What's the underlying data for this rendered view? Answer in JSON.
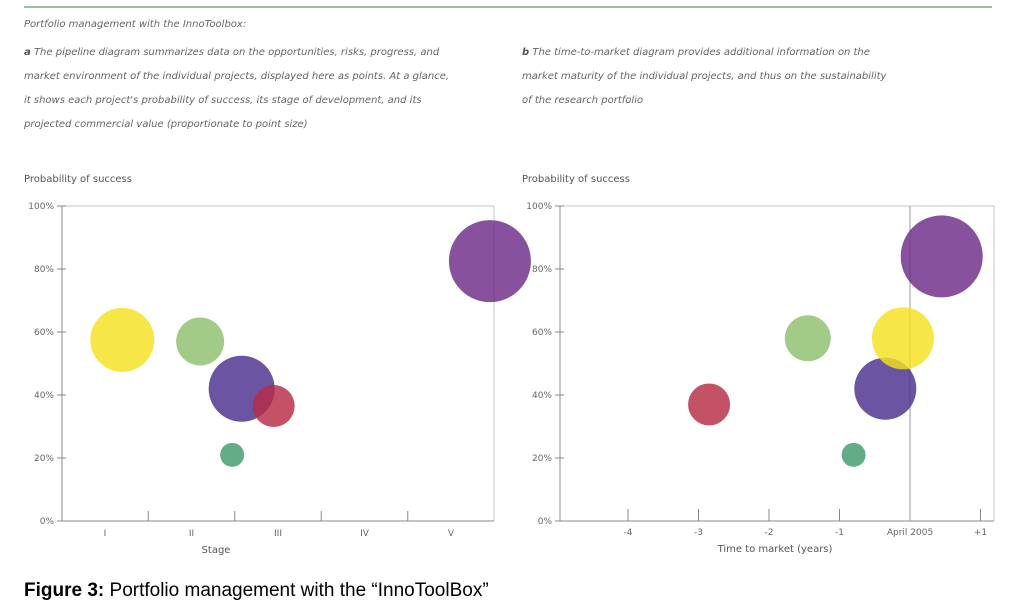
{
  "header": {
    "title": "Portfolio management with the InnoToolbox:"
  },
  "captions": {
    "a_letter": "a",
    "a_lines": [
      "The pipeline diagram summarizes data on the opportunities, risks, progress, and",
      "market environment of the individual projects, displayed here as points. At a glance,",
      "it shows each project's probability of success, its stage of development, and its",
      "projected commercial value (proportionate to point size)"
    ],
    "b_letter": "b",
    "b_lines": [
      "The time-to-market diagram provides additional information on the",
      "market maturity of the individual projects, and thus on the sustainability",
      "of the research portfolio"
    ]
  },
  "figure_caption": {
    "label": "Figure 3:",
    "text": "Portfolio management with the “InnoToolBox”"
  },
  "colors": {
    "yellow": "#f5e01e",
    "green": "#8ebf6c",
    "indigo": "#4a2f8f",
    "red": "#b62c46",
    "teal": "#3f9a6e",
    "purple": "#6d2b88"
  },
  "chart_data": [
    {
      "type": "scatter",
      "ylabel": "Probability of success",
      "xlabel": "Stage",
      "x_categories": [
        "I",
        "II",
        "III",
        "IV",
        "V"
      ],
      "y_ticks": [
        "0%",
        "20%",
        "40%",
        "60%",
        "80%",
        "100%"
      ],
      "ylim": [
        0,
        100
      ],
      "points": [
        {
          "x": 0.2,
          "y": 57.5,
          "size": 32,
          "color": "#f5e01e"
        },
        {
          "x": 1.1,
          "y": 57,
          "size": 24,
          "color": "#8ebf6c"
        },
        {
          "x": 1.58,
          "y": 42,
          "size": 33,
          "color": "#4a2f8f"
        },
        {
          "x": 1.95,
          "y": 36.5,
          "size": 21,
          "color": "#b62c46"
        },
        {
          "x": 1.47,
          "y": 21,
          "size": 12,
          "color": "#3f9a6e"
        },
        {
          "x": 4.45,
          "y": 82.5,
          "size": 41,
          "color": "#6d2b88"
        }
      ]
    },
    {
      "type": "scatter",
      "ylabel": "Probability of success",
      "xlabel": "Time to market (years)",
      "x_ticks": [
        "-4",
        "-3",
        "-2",
        "-1",
        "April 2005",
        "+1"
      ],
      "x_tick_values": [
        -4,
        -3,
        -2,
        -1,
        0,
        1
      ],
      "reference_line": "April 2005",
      "y_ticks": [
        "0%",
        "20%",
        "40%",
        "60%",
        "80%",
        "100%"
      ],
      "ylim": [
        0,
        100
      ],
      "points": [
        {
          "x": -2.85,
          "y": 37,
          "size": 21,
          "color": "#b62c46"
        },
        {
          "x": -1.45,
          "y": 58,
          "size": 23,
          "color": "#8ebf6c"
        },
        {
          "x": -0.8,
          "y": 21,
          "size": 12,
          "color": "#3f9a6e"
        },
        {
          "x": -0.35,
          "y": 42,
          "size": 31,
          "color": "#4a2f8f"
        },
        {
          "x": -0.1,
          "y": 58,
          "size": 31,
          "color": "#f5e01e"
        },
        {
          "x": 0.45,
          "y": 84,
          "size": 41,
          "color": "#6d2b88"
        }
      ]
    }
  ]
}
